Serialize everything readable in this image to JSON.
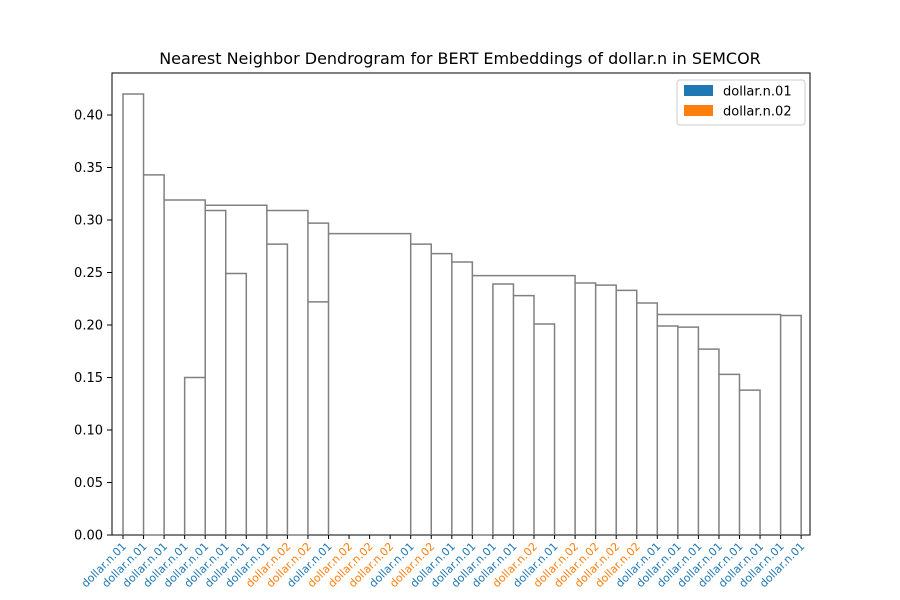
{
  "chart_data": {
    "type": "dendrogram",
    "title": "Nearest Neighbor Dendrogram for BERT Embeddings of dollar.n in SEMCOR",
    "xlabel": "",
    "ylabel": "",
    "ylim": [
      0,
      0.44
    ],
    "yticks": [
      "0.00",
      "0.05",
      "0.10",
      "0.15",
      "0.20",
      "0.25",
      "0.30",
      "0.35",
      "0.40"
    ],
    "grid": false,
    "legend_position": "top-right",
    "legend": [
      {
        "label": "dollar.n.01",
        "color": "#1f77b4"
      },
      {
        "label": "dollar.n.02",
        "color": "#ff7f0e"
      }
    ],
    "link_color": "#808080",
    "leaves": [
      {
        "label": "dollar.n.01",
        "sense": "dollar.n.01"
      },
      {
        "label": "dollar.n.01",
        "sense": "dollar.n.01"
      },
      {
        "label": "dollar.n.01",
        "sense": "dollar.n.01"
      },
      {
        "label": "dollar.n.01",
        "sense": "dollar.n.01"
      },
      {
        "label": "dollar.n.01",
        "sense": "dollar.n.01"
      },
      {
        "label": "dollar.n.01",
        "sense": "dollar.n.01"
      },
      {
        "label": "dollar.n.01",
        "sense": "dollar.n.01"
      },
      {
        "label": "dollar.n.01",
        "sense": "dollar.n.01"
      },
      {
        "label": "dollar.n.02",
        "sense": "dollar.n.02"
      },
      {
        "label": "dollar.n.02",
        "sense": "dollar.n.02"
      },
      {
        "label": "dollar.n.01",
        "sense": "dollar.n.01"
      },
      {
        "label": "dollar.n.02",
        "sense": "dollar.n.02"
      },
      {
        "label": "dollar.n.02",
        "sense": "dollar.n.02"
      },
      {
        "label": "dollar.n.02",
        "sense": "dollar.n.02"
      },
      {
        "label": "dollar.n.01",
        "sense": "dollar.n.01"
      },
      {
        "label": "dollar.n.02",
        "sense": "dollar.n.02"
      },
      {
        "label": "dollar.n.01",
        "sense": "dollar.n.01"
      },
      {
        "label": "dollar.n.01",
        "sense": "dollar.n.01"
      },
      {
        "label": "dollar.n.01",
        "sense": "dollar.n.01"
      },
      {
        "label": "dollar.n.01",
        "sense": "dollar.n.01"
      },
      {
        "label": "dollar.n.02",
        "sense": "dollar.n.02"
      },
      {
        "label": "dollar.n.01",
        "sense": "dollar.n.01"
      },
      {
        "label": "dollar.n.02",
        "sense": "dollar.n.02"
      },
      {
        "label": "dollar.n.02",
        "sense": "dollar.n.02"
      },
      {
        "label": "dollar.n.02",
        "sense": "dollar.n.02"
      },
      {
        "label": "dollar.n.02",
        "sense": "dollar.n.02"
      },
      {
        "label": "dollar.n.01",
        "sense": "dollar.n.01"
      },
      {
        "label": "dollar.n.01",
        "sense": "dollar.n.01"
      },
      {
        "label": "dollar.n.01",
        "sense": "dollar.n.01"
      },
      {
        "label": "dollar.n.01",
        "sense": "dollar.n.01"
      },
      {
        "label": "dollar.n.01",
        "sense": "dollar.n.01"
      },
      {
        "label": "dollar.n.01",
        "sense": "dollar.n.01"
      },
      {
        "label": "dollar.n.01",
        "sense": "dollar.n.01"
      },
      {
        "label": "dollar.n.01",
        "sense": "dollar.n.01"
      }
    ],
    "merges": [
      {
        "left": 2,
        "right": 3,
        "height": 0.0
      },
      {
        "left": 9,
        "right": 10,
        "height": 0.0
      },
      {
        "left": 18,
        "right": 19,
        "height": 0.0
      },
      {
        "left": 4,
        "right": 5,
        "height": 0.15
      },
      {
        "left": 6,
        "right": 7,
        "height": 0.249
      },
      {
        "left": 8,
        "right": 9,
        "height": 0.277
      },
      {
        "left": 21,
        "right": 22,
        "height": 0.201
      },
      {
        "left": 31,
        "right": 32,
        "height": 0.138
      },
      {
        "left": 30,
        "right": 31,
        "height": 0.153
      },
      {
        "left": 29,
        "right": 30,
        "height": 0.177
      },
      {
        "left": 28,
        "right": 29,
        "height": 0.198
      },
      {
        "left": 27,
        "right": 28,
        "height": 0.199
      },
      {
        "left": 33,
        "right": 34,
        "height": 0.209
      },
      {
        "left": 27,
        "right": 33,
        "height": 0.21
      },
      {
        "left": 26,
        "right": 27,
        "height": 0.221
      },
      {
        "left": 10,
        "right": 11,
        "height": 0.222
      },
      {
        "left": 20,
        "right": 21,
        "height": 0.228
      },
      {
        "left": 25,
        "right": 26,
        "height": 0.233
      },
      {
        "left": 24,
        "right": 25,
        "height": 0.238
      },
      {
        "left": 19,
        "right": 20,
        "height": 0.239
      },
      {
        "left": 23,
        "right": 24,
        "height": 0.24
      },
      {
        "left": 18,
        "right": 23,
        "height": 0.247
      },
      {
        "left": 17,
        "right": 18,
        "height": 0.26
      },
      {
        "left": 16,
        "right": 17,
        "height": 0.268
      },
      {
        "left": 15,
        "right": 16,
        "height": 0.277
      },
      {
        "left": 11,
        "right": 15,
        "height": 0.287
      },
      {
        "left": 10,
        "right": 11,
        "height": 0.297
      },
      {
        "left": 8,
        "right": 10,
        "height": 0.309
      },
      {
        "left": 5,
        "right": 6,
        "height": 0.309
      },
      {
        "left": 5,
        "right": 8,
        "height": 0.314
      },
      {
        "left": 3,
        "right": 5,
        "height": 0.319
      },
      {
        "left": 2,
        "right": 3,
        "height": 0.343
      },
      {
        "left": 1,
        "right": 2,
        "height": 0.42
      }
    ]
  }
}
